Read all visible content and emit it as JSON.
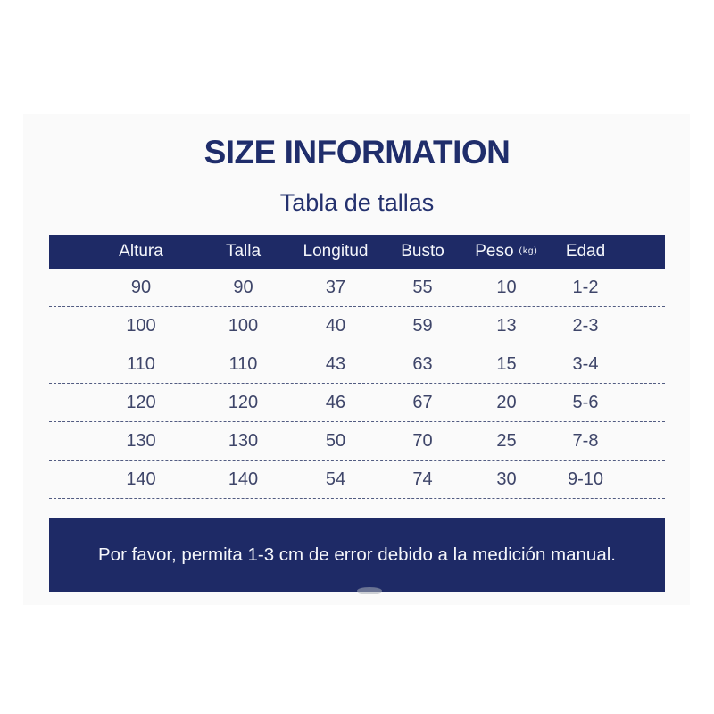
{
  "title": "SIZE INFORMATION",
  "subtitle": "Tabla de tallas",
  "table": {
    "columns": [
      "Altura",
      "Talla",
      "Longitud",
      "Busto",
      "Peso",
      "Edad"
    ],
    "peso_unit": "(kg)",
    "rows": [
      [
        "90",
        "90",
        "37",
        "55",
        "10",
        "1-2"
      ],
      [
        "100",
        "100",
        "40",
        "59",
        "13",
        "2-3"
      ],
      [
        "110",
        "110",
        "43",
        "63",
        "15",
        "3-4"
      ],
      [
        "120",
        "120",
        "46",
        "67",
        "20",
        "5-6"
      ],
      [
        "130",
        "130",
        "50",
        "70",
        "25",
        "7-8"
      ],
      [
        "140",
        "140",
        "54",
        "74",
        "30",
        "9-10"
      ]
    ]
  },
  "footer": {
    "note": "Por favor, permita 1-3 cm de error debido a la medición manual."
  },
  "colors": {
    "navy": "#1e2a66",
    "title_text": "#1f2d6b",
    "data_text": "#3e4569",
    "dash": "#525c82",
    "panel": "#fafafa"
  }
}
